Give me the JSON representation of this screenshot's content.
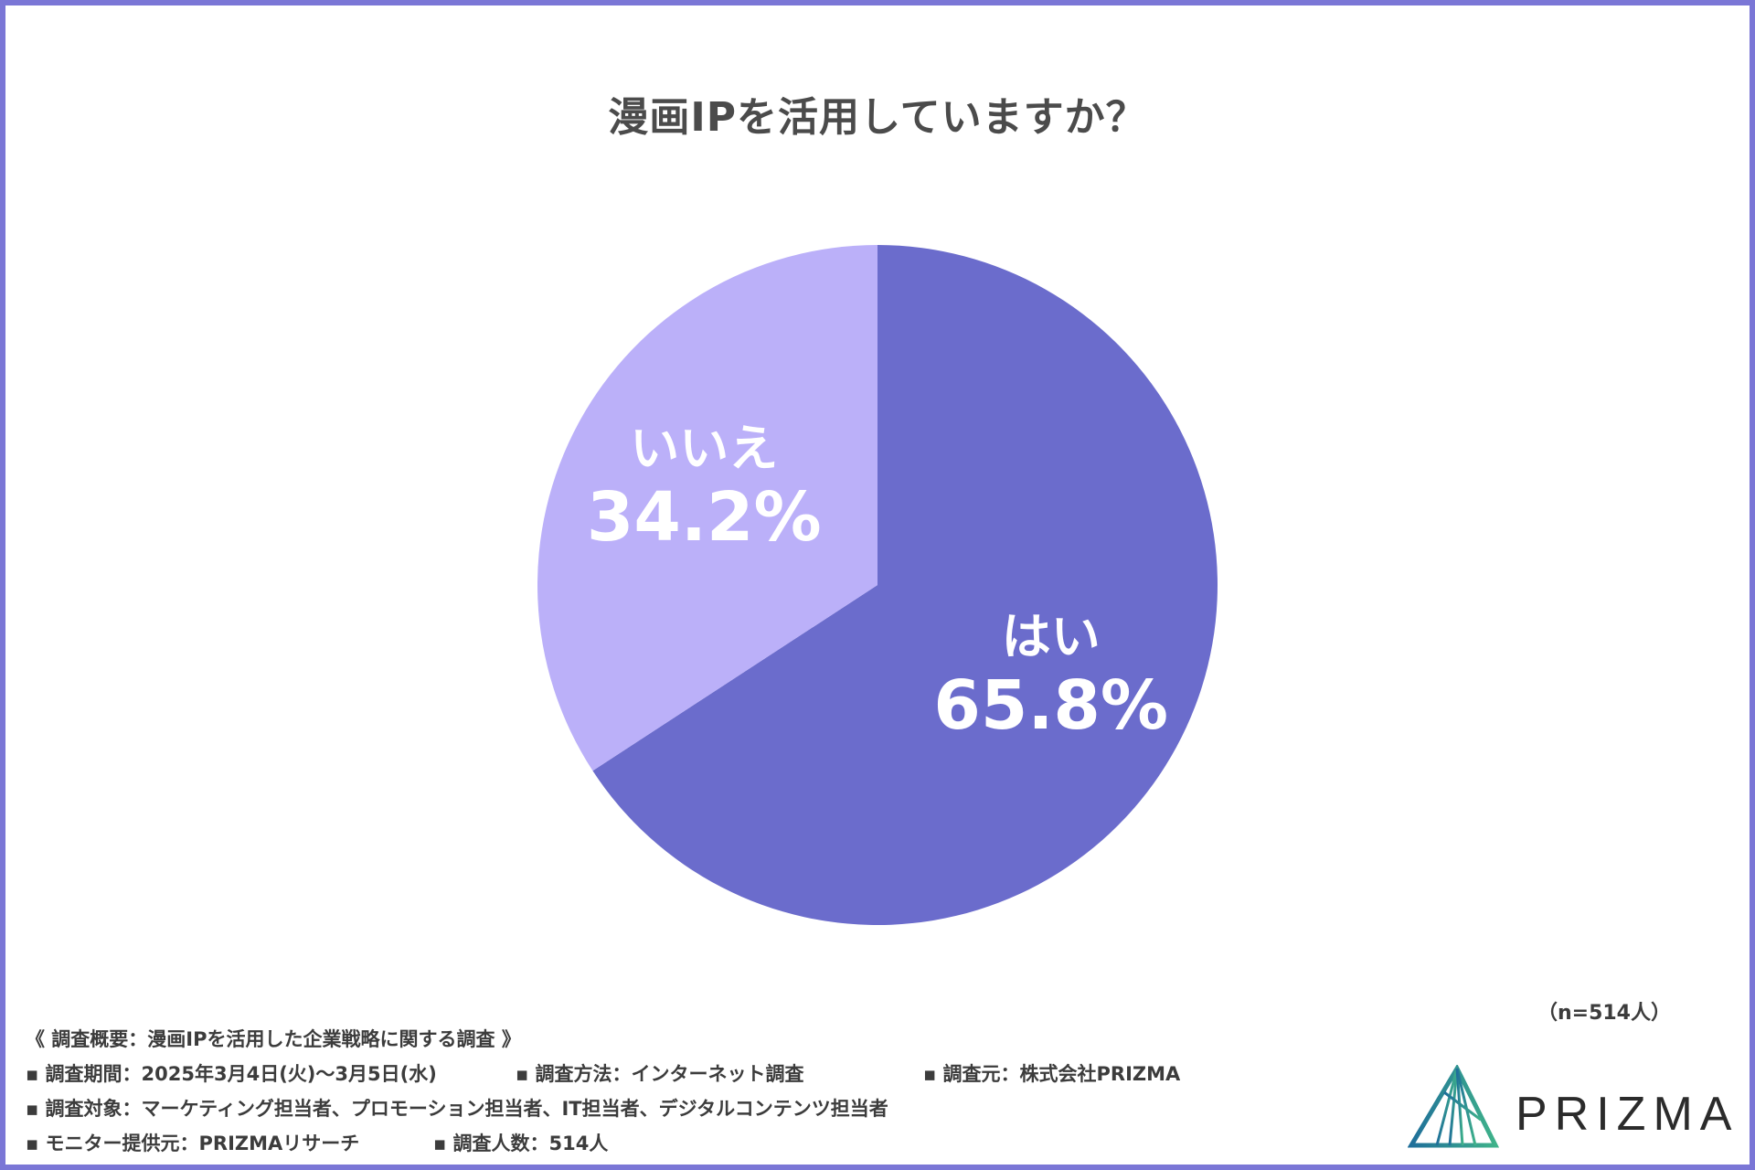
{
  "title": "漫画IPを活用していますか？",
  "sample_size": "（n=514人）",
  "chart_data": {
    "type": "pie",
    "title": "漫画IPを活用していますか？",
    "slices": [
      {
        "label": "はい",
        "value": 65.8,
        "value_label": "65.8%",
        "color": "#6b6ccc"
      },
      {
        "label": "いいえ",
        "value": 34.2,
        "value_label": "34.2%",
        "color": "#bbb0f9"
      }
    ]
  },
  "survey": {
    "header": "《 調査概要：漫画IPを活用した企業戦略に関する調査 》",
    "period": "▪ 調査期間：2025年3月4日(火)〜3月5日(水)",
    "method": "▪ 調査方法：インターネット調査",
    "source": "▪ 調査元：株式会社PRIZMA",
    "target": "▪ 調査対象：マーケティング担当者、プロモーション担当者、IT担当者、デジタルコンテンツ担当者",
    "monitor": "▪ モニター提供元：PRIZMAリサーチ",
    "count": "▪ 調査人数：514人"
  },
  "logo": {
    "text": "PRIZMA",
    "color_left": "#1f6f9a",
    "color_right": "#3fb28a"
  },
  "colors": {
    "frame": "#7a76d6"
  }
}
